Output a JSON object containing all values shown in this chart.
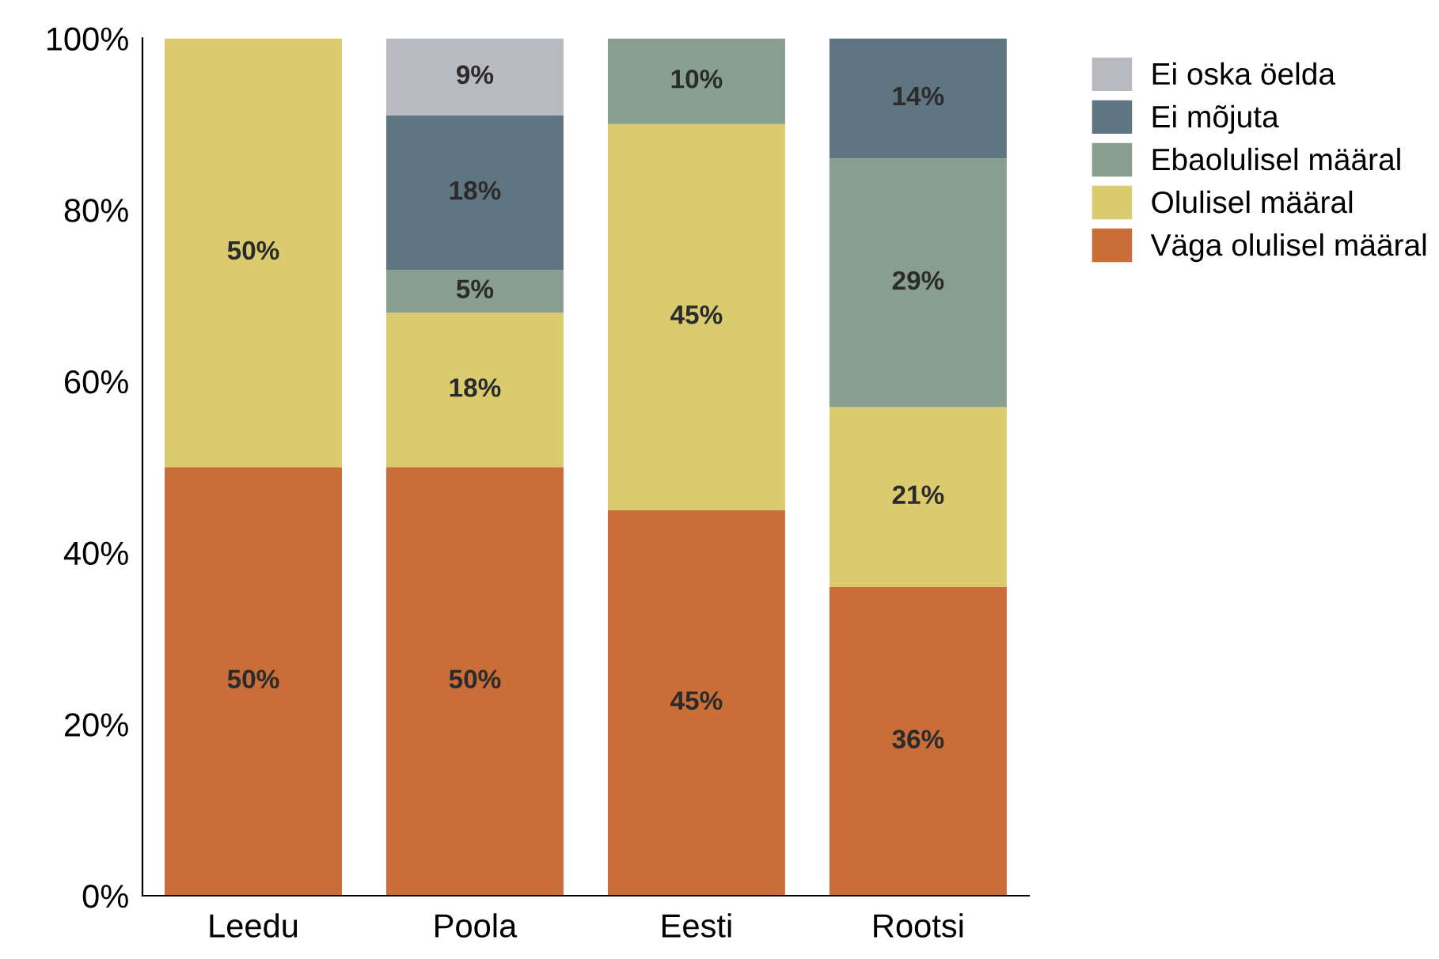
{
  "chart_data": {
    "type": "bar",
    "stacked": true,
    "categories": [
      "Leedu",
      "Poola",
      "Eesti",
      "Rootsi"
    ],
    "series": [
      {
        "name": "Väga olulisel määral",
        "color": "#c96d39",
        "values": [
          50,
          50,
          45,
          36
        ],
        "value_labels": [
          "50%",
          "50%",
          "45%",
          "36%"
        ]
      },
      {
        "name": "Olulisel määral",
        "color": "#d9cb6e",
        "values": [
          50,
          18,
          45,
          21
        ],
        "value_labels": [
          "50%",
          "18%",
          "45%",
          "21%"
        ]
      },
      {
        "name": "Ebaolulisel määral",
        "color": "#889e8f",
        "values": [
          null,
          5,
          10,
          29
        ],
        "value_labels": [
          null,
          "5%",
          "10%",
          "29%"
        ]
      },
      {
        "name": "Ei mõjuta",
        "color": "#5f7581",
        "values": [
          null,
          18,
          null,
          14
        ],
        "value_labels": [
          null,
          "18%",
          null,
          "14%"
        ]
      },
      {
        "name": "Ei oska öelda",
        "color": "#b9babf",
        "values": [
          null,
          9,
          null,
          null
        ],
        "value_labels": [
          null,
          "9%",
          null,
          null
        ]
      }
    ],
    "ylim": [
      0,
      100
    ],
    "yticks": [
      {
        "value": 0,
        "label": "0%"
      },
      {
        "value": 20,
        "label": "20%"
      },
      {
        "value": 40,
        "label": "40%"
      },
      {
        "value": 60,
        "label": "60%"
      },
      {
        "value": 80,
        "label": "80%"
      },
      {
        "value": 100,
        "label": "100%"
      }
    ],
    "grid": false,
    "legend": "top right"
  }
}
